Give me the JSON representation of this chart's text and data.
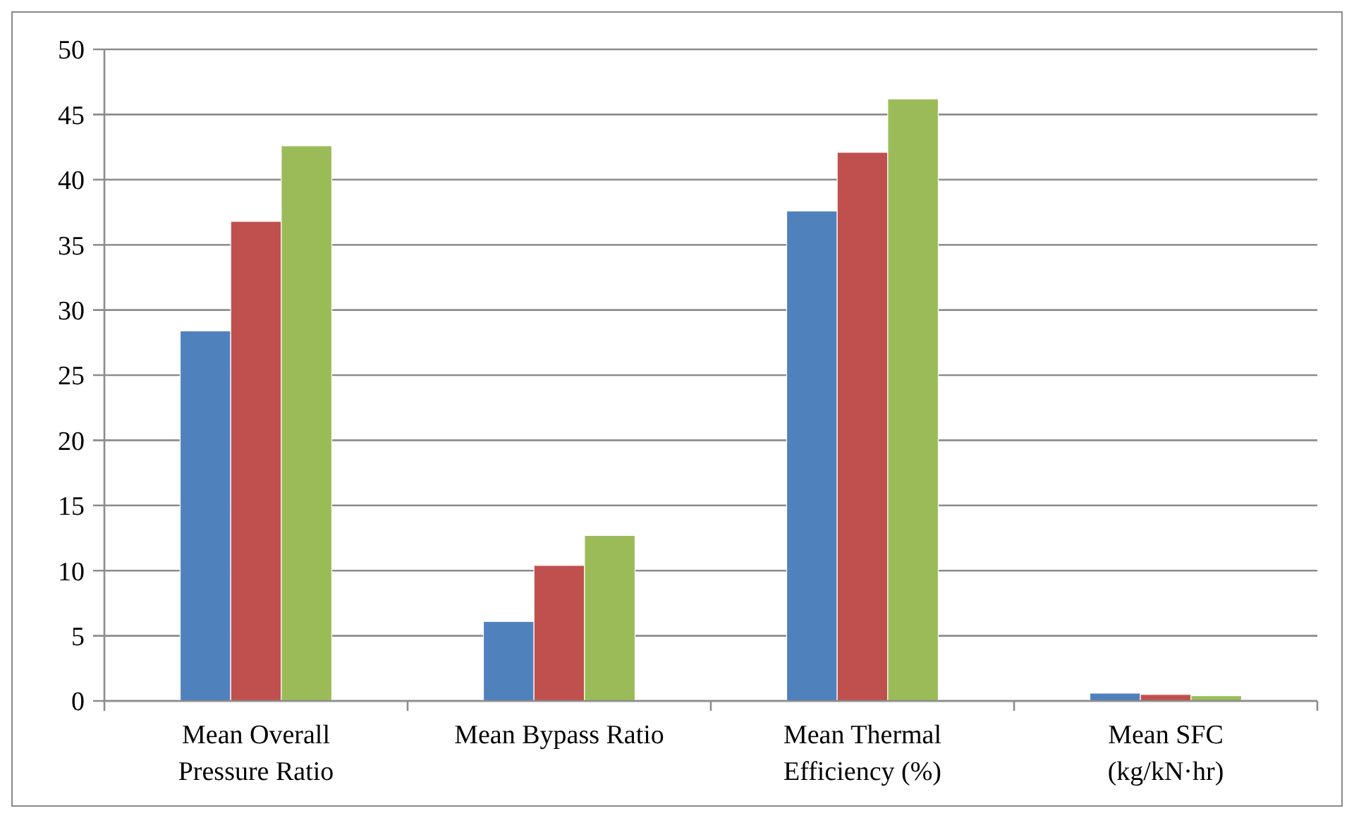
{
  "chart_data": {
    "type": "bar",
    "categories": [
      "Mean Overall Pressure Ratio",
      "Mean Bypass Ratio",
      "Mean Thermal Efficiency (%)",
      "Mean SFC (kg/kN·hr)"
    ],
    "series": [
      {
        "color": "#4f81bd",
        "values": [
          28.4,
          6.1,
          37.6,
          0.6
        ]
      },
      {
        "color": "#c0504d",
        "values": [
          36.8,
          10.4,
          42.1,
          0.5
        ]
      },
      {
        "color": "#9bbb59",
        "values": [
          42.6,
          12.7,
          46.2,
          0.4
        ]
      }
    ],
    "ylim": [
      0,
      50
    ],
    "yticks": [
      0,
      5,
      10,
      15,
      20,
      25,
      30,
      35,
      40,
      45,
      50
    ],
    "grid": "y"
  }
}
